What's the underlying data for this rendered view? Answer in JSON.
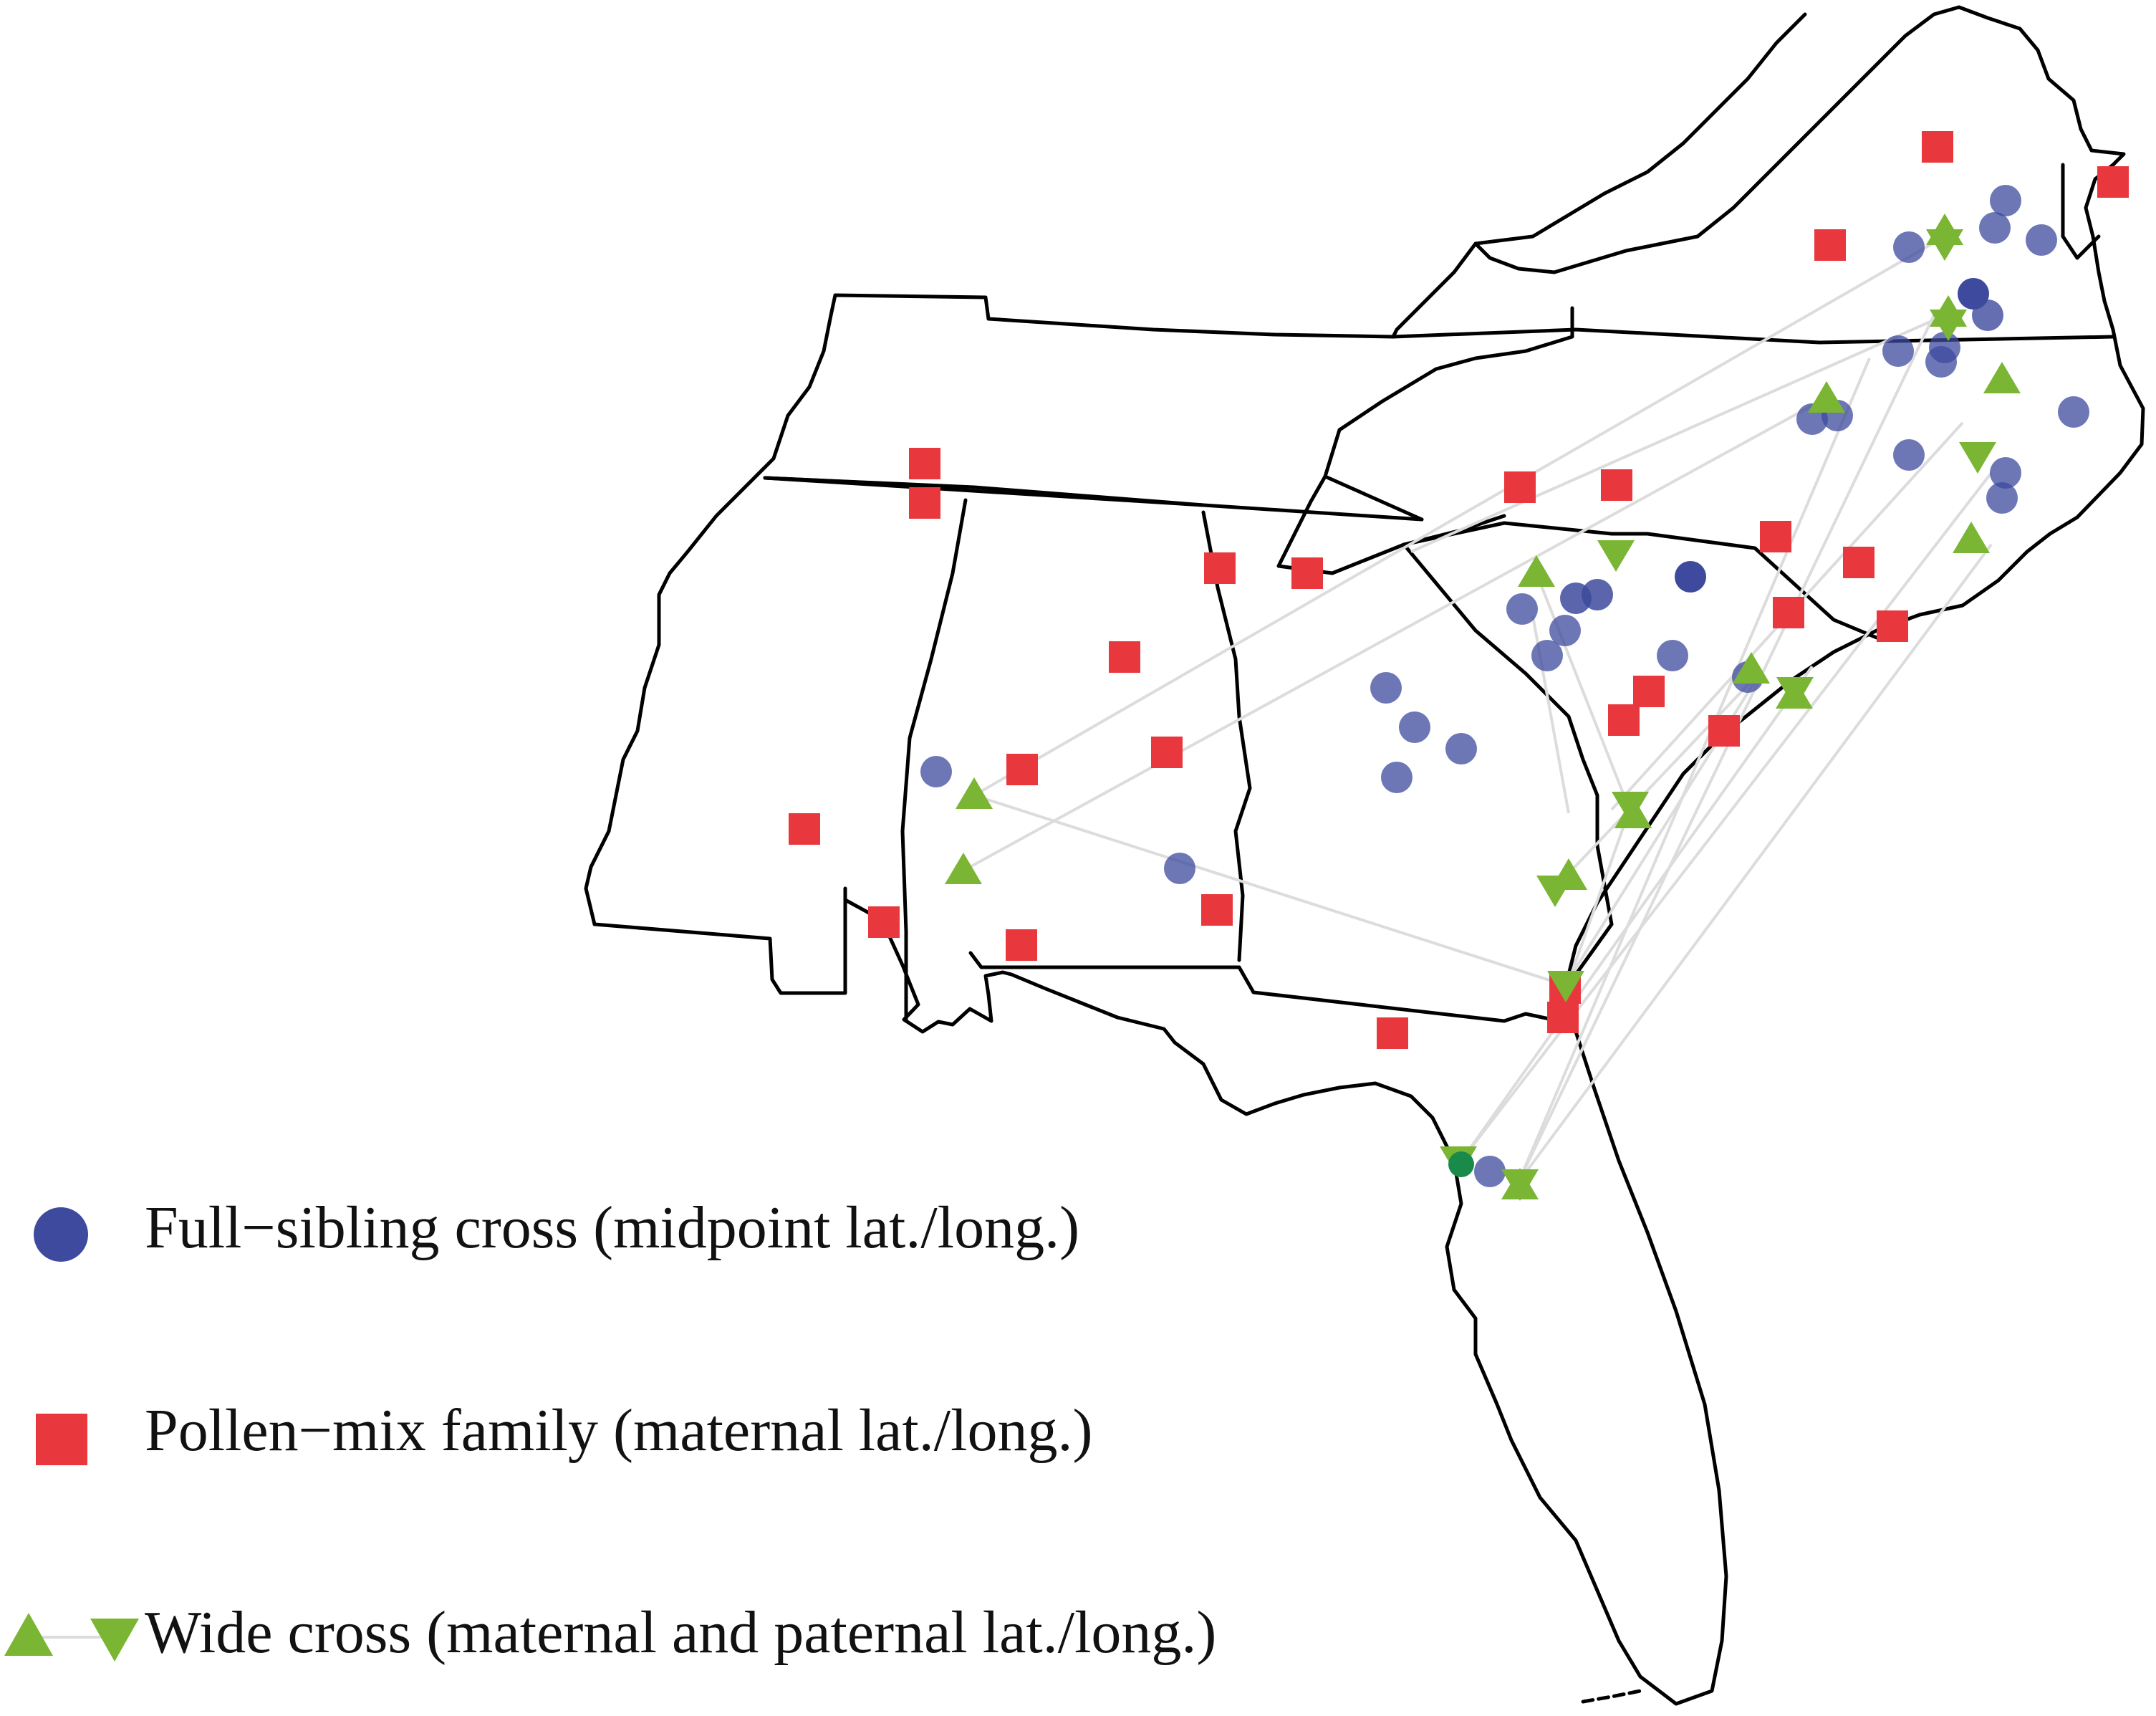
{
  "colors": {
    "background": "#ffffff",
    "border": "#000000",
    "full_sibling": "#3d4a9e",
    "pollen_mix": "#e8383d",
    "wide_cross": "#7ab534",
    "link_line": "#dcdcdc"
  },
  "legend": {
    "full_sibling": {
      "label": "Full−sibling cross (midpoint lat./long.)",
      "icon": "circle-marker"
    },
    "pollen_mix": {
      "label": "Pollen−mix family (maternal lat./long.)",
      "icon": "square-marker"
    },
    "wide_cross": {
      "label": "Wide cross (maternal and paternal lat./long.)",
      "icon": "triangle-up-down-marker"
    }
  }
}
